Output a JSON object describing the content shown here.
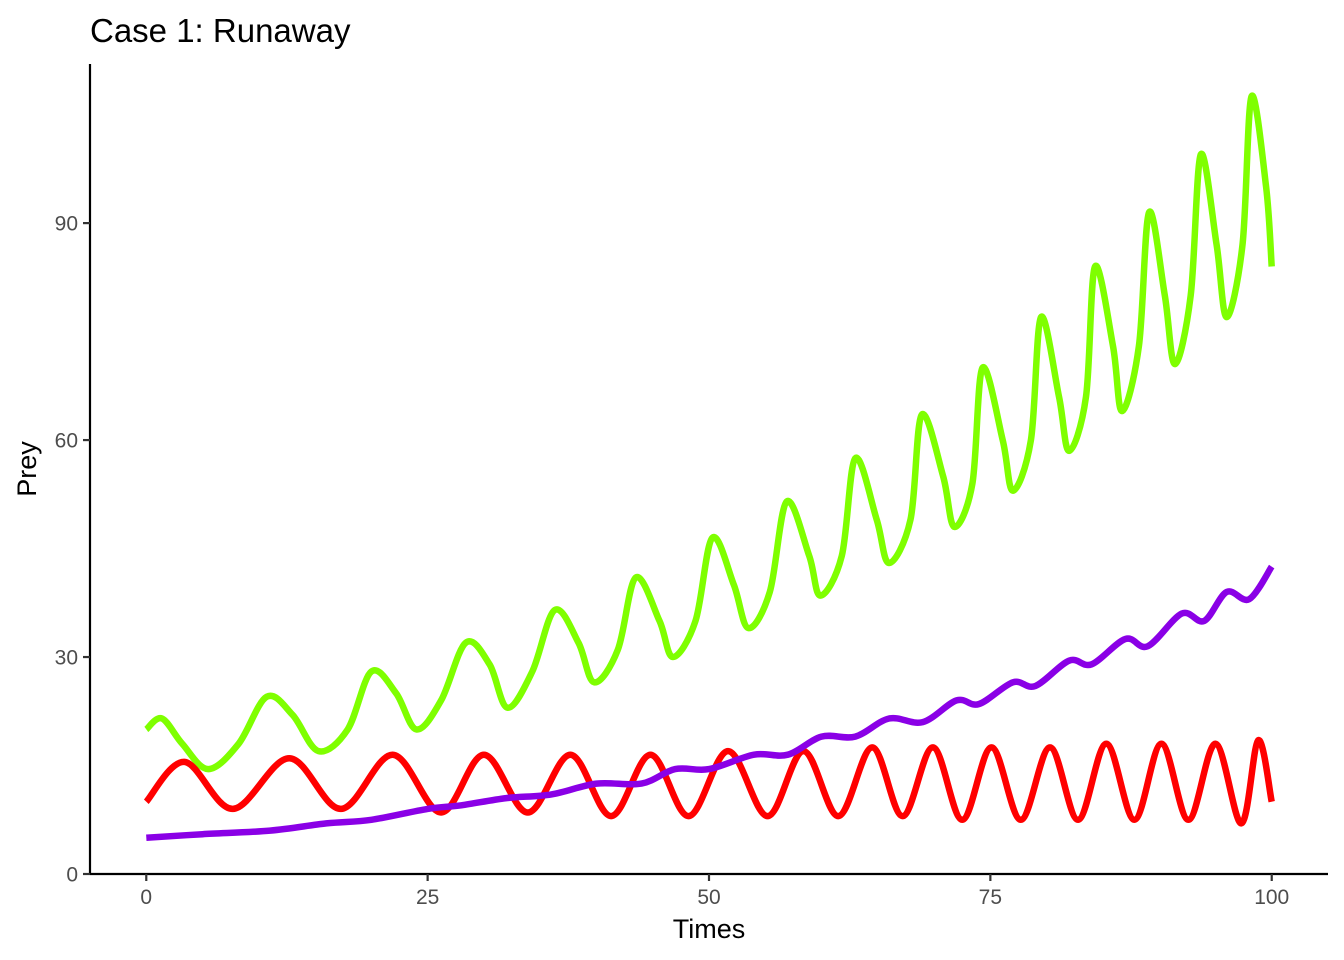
{
  "chart_data": {
    "type": "line",
    "title": "Case 1: Runaway",
    "xlabel": "Times",
    "ylabel": "Prey",
    "xlim": [
      -5,
      105
    ],
    "ylim": [
      0,
      112
    ],
    "x_ticks": [
      0,
      25,
      50,
      75,
      100
    ],
    "y_ticks": [
      0,
      30,
      60,
      90
    ],
    "x_tick_labels": [
      "0",
      "25",
      "50",
      "75",
      "100"
    ],
    "y_tick_labels": [
      "0",
      "30",
      "60",
      "90"
    ],
    "grid": false,
    "legend": "none",
    "series": [
      {
        "color": "#7FFF00",
        "x": [
          0,
          1.4,
          3.2,
          5.5,
          8.2,
          10.7,
          13.0,
          15.3,
          17.9,
          20.0,
          22.2,
          24.0,
          26.2,
          28.4,
          30.5,
          32.1,
          34.3,
          36.3,
          38.4,
          39.8,
          41.9,
          43.5,
          45.6,
          46.8,
          48.8,
          50.3,
          52.2,
          53.5,
          55.4,
          56.9,
          58.9,
          59.9,
          61.8,
          63.0,
          64.9,
          66.0,
          67.9,
          68.9,
          70.8,
          71.8,
          73.4,
          74.3,
          76.1,
          77.0,
          78.6,
          79.5,
          81.1,
          82.0,
          83.5,
          84.3,
          85.9,
          86.7,
          88.2,
          89.1,
          90.5,
          91.4,
          92.8,
          93.7,
          95.1,
          96.0,
          97.4,
          98.2,
          99.5,
          100.0
        ],
        "values": [
          20,
          21.5,
          18,
          14.5,
          18,
          24.5,
          22,
          17,
          20,
          28,
          25,
          20,
          24,
          32,
          29,
          23,
          28,
          36.5,
          32,
          26.5,
          31,
          41,
          35,
          30,
          35,
          46.5,
          40,
          34,
          39,
          51.5,
          44,
          38.5,
          44,
          57.5,
          49,
          43,
          49,
          63.5,
          55,
          48,
          54,
          70,
          60,
          53,
          60,
          77,
          66,
          58.5,
          66,
          84,
          73,
          64,
          73,
          91.5,
          80,
          70.5,
          80,
          99.5,
          87,
          77,
          87,
          107.5,
          95,
          84
        ]
      },
      {
        "color": "#FF0000",
        "x": [
          0,
          3.4,
          7.7,
          12.7,
          17.3,
          21.9,
          26.2,
          30.0,
          33.9,
          37.7,
          41.3,
          44.8,
          48.2,
          51.7,
          55.2,
          58.4,
          61.5,
          64.5,
          67.2,
          69.9,
          72.5,
          75.1,
          77.7,
          80.3,
          82.8,
          85.3,
          87.8,
          90.2,
          92.6,
          95.0,
          97.3,
          98.8,
          100.0
        ],
        "values": [
          10,
          15.5,
          9,
          16,
          9,
          16.5,
          8.5,
          16.5,
          8.5,
          16.5,
          8,
          16.5,
          8,
          17,
          8,
          17,
          8,
          17.5,
          8,
          17.5,
          7.5,
          17.5,
          7.5,
          17.5,
          7.5,
          18,
          7.5,
          18,
          7.5,
          18,
          7,
          18.5,
          10
        ]
      },
      {
        "color": "#8A00E6",
        "x": [
          0,
          5,
          11,
          16,
          20,
          25,
          28,
          32,
          36,
          40,
          44,
          47,
          50,
          54,
          57,
          60,
          63,
          66,
          69,
          72,
          74,
          77,
          79,
          82,
          84,
          87,
          89,
          92,
          94,
          96,
          98,
          100
        ],
        "values": [
          5,
          5.5,
          6,
          7,
          7.5,
          9,
          9.5,
          10.5,
          11,
          12.5,
          12.5,
          14.5,
          14.5,
          16.5,
          16.5,
          19,
          19,
          21.5,
          21,
          24,
          23.5,
          26.5,
          26,
          29.5,
          29,
          32.5,
          31.5,
          36,
          35,
          39,
          38,
          42.5
        ]
      }
    ]
  }
}
